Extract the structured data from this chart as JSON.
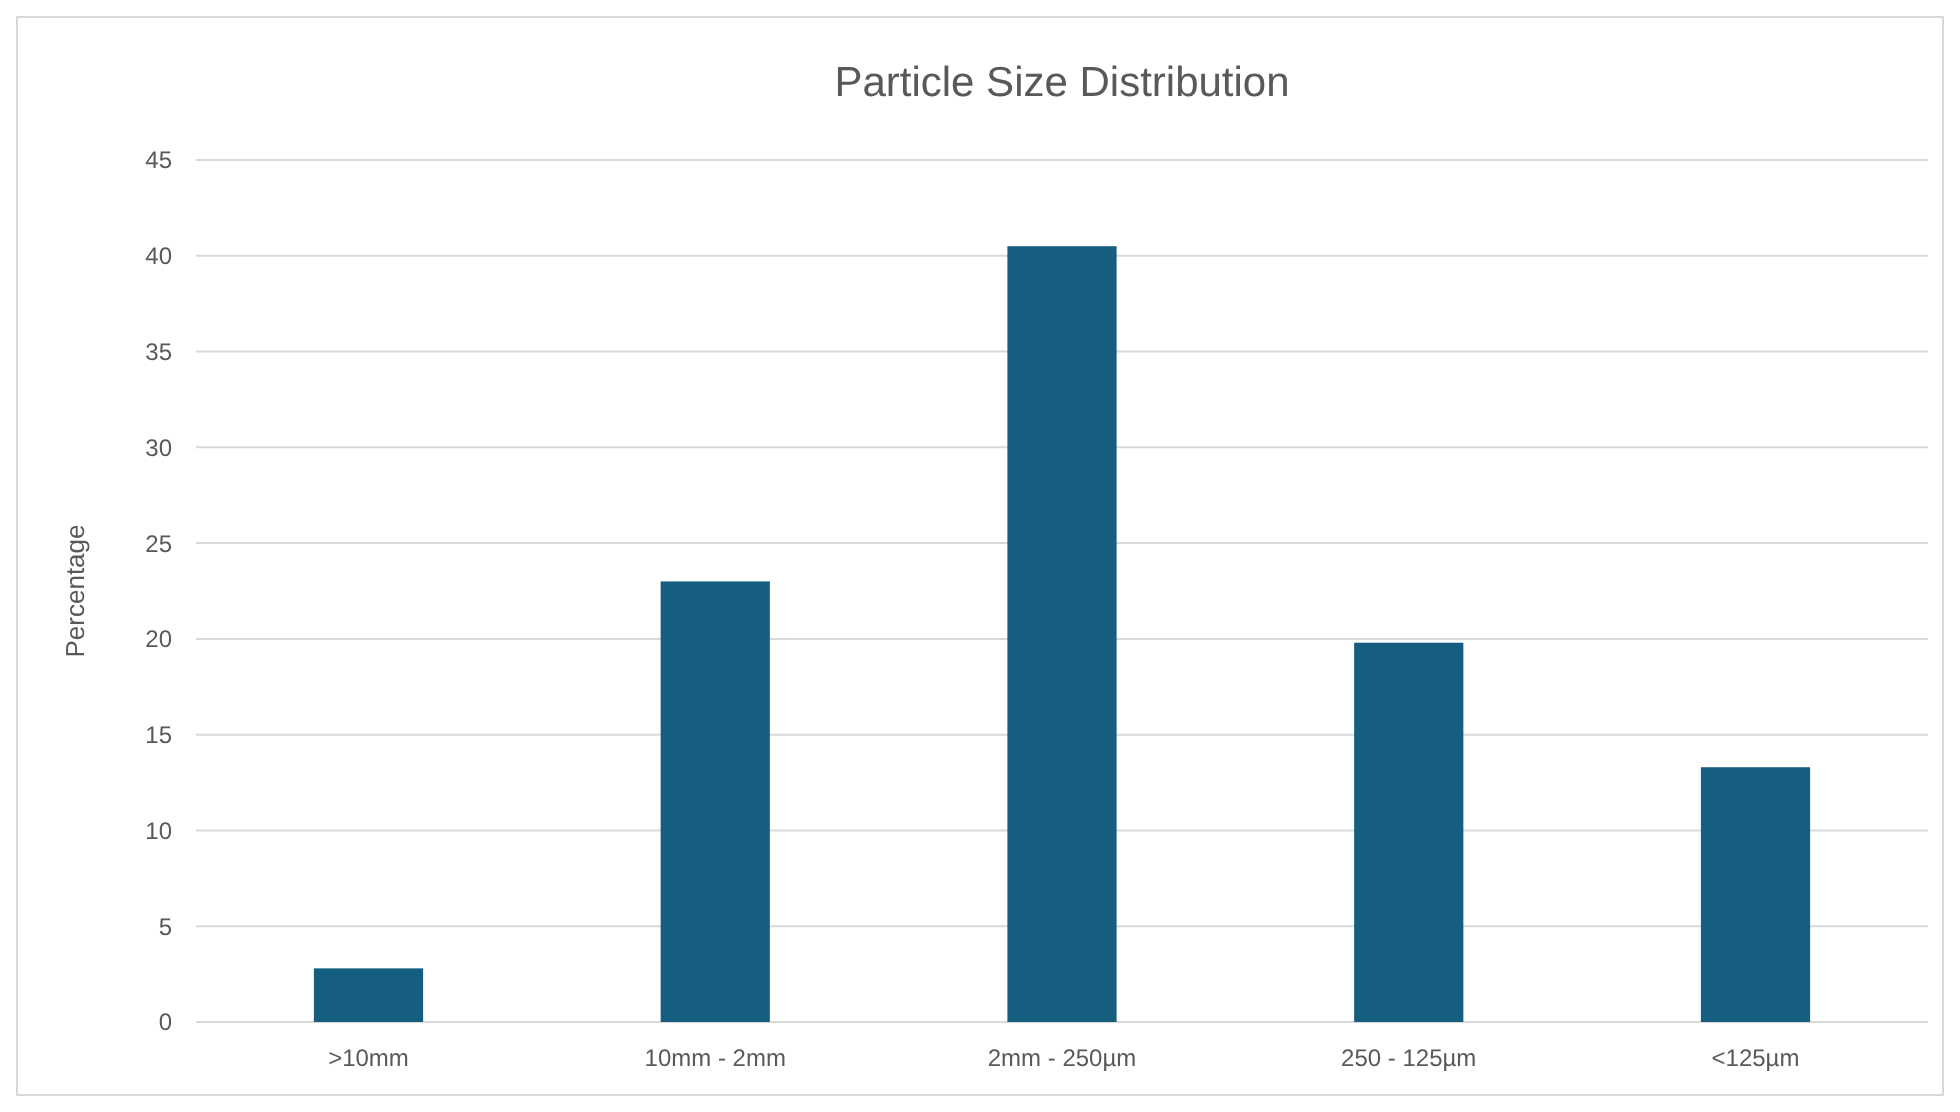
{
  "chart_data": {
    "type": "bar",
    "title": "Particle Size Distribution",
    "ylabel": "Percentage",
    "categories": [
      ">10mm",
      "10mm - 2mm",
      "2mm - 250µm",
      "250 - 125µm",
      "<125µm"
    ],
    "values": [
      2.8,
      23.0,
      40.5,
      19.8,
      13.3
    ],
    "color": "#165e80",
    "ylim": [
      0,
      45
    ],
    "yticks": [
      0,
      5,
      10,
      15,
      20,
      25,
      30,
      35,
      40,
      45
    ],
    "grid": "y"
  }
}
